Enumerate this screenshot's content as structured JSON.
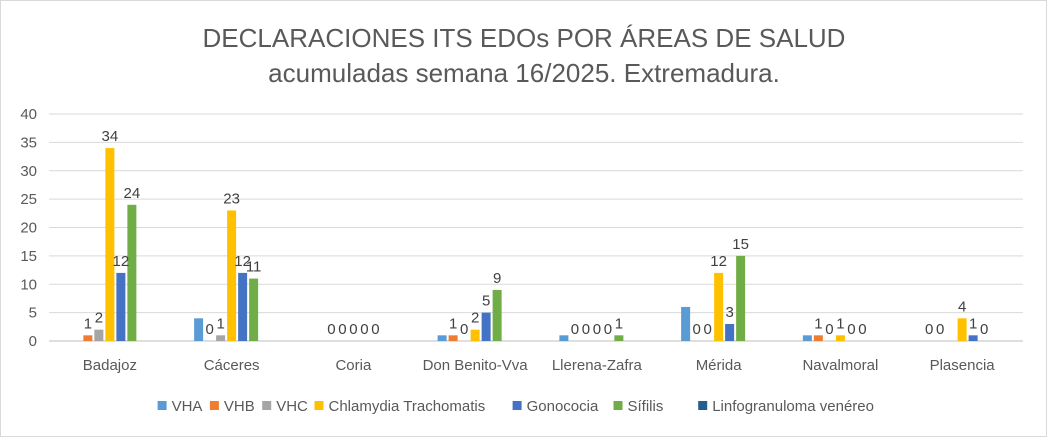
{
  "chart_data": {
    "type": "bar",
    "title_lines": [
      "DECLARACIONES ITS EDOs POR ÁREAS DE SALUD",
      "acumuladas semana 16/2025. Extremadura."
    ],
    "xlabel": "",
    "ylabel": "",
    "ylim": [
      0,
      40
    ],
    "yticks": [
      0,
      5,
      10,
      15,
      20,
      25,
      30,
      35,
      40
    ],
    "grid": true,
    "legend_position": "bottom",
    "categories": [
      "Badajoz",
      "Cáceres",
      "Coria",
      "Don Benito-Vva",
      "Llerena-Zafra",
      "Mérida",
      "Navalmoral",
      "Plasencia"
    ],
    "series": [
      {
        "name": "VHA",
        "color": "#5b9bd5",
        "values": [
          0,
          4,
          0,
          1,
          1,
          6,
          1,
          0
        ],
        "labels": [
          null,
          null,
          null,
          null,
          null,
          null,
          null,
          "0"
        ]
      },
      {
        "name": "VHB",
        "color": "#ed7d31",
        "values": [
          1,
          0,
          0,
          1,
          0,
          0,
          1,
          0
        ],
        "labels": [
          "1",
          "0",
          "0",
          "1",
          "0",
          "0",
          "1",
          "0"
        ]
      },
      {
        "name": "VHC",
        "color": "#a5a5a5",
        "values": [
          2,
          1,
          0,
          0,
          0,
          0,
          0,
          0
        ],
        "labels": [
          "2",
          "1",
          "0",
          "0",
          "0",
          "0",
          "0",
          null
        ]
      },
      {
        "name": "Chlamydia Trachomatis",
        "color": "#ffc000",
        "values": [
          34,
          23,
          0,
          2,
          0,
          12,
          1,
          4
        ],
        "labels": [
          "34",
          "23",
          "0",
          "2",
          "0",
          "12",
          "1",
          "4"
        ]
      },
      {
        "name": "Gonococia",
        "color": "#4472c4",
        "values": [
          12,
          12,
          0,
          5,
          0,
          3,
          0,
          1
        ],
        "labels": [
          "12",
          "12",
          "0",
          "5",
          "0",
          "3",
          "0",
          "1"
        ]
      },
      {
        "name": "Sífilis",
        "color": "#70ad47",
        "values": [
          24,
          11,
          0,
          9,
          1,
          15,
          0,
          0
        ],
        "labels": [
          "24",
          "11",
          "0",
          "9",
          "1",
          "15",
          "0",
          "0"
        ]
      },
      {
        "name": "Linfogranuloma venéreo",
        "color": "#255e91",
        "values": [
          0,
          0,
          0,
          0,
          0,
          0,
          0,
          0
        ],
        "labels": [
          null,
          null,
          null,
          null,
          null,
          null,
          null,
          null
        ]
      }
    ]
  }
}
